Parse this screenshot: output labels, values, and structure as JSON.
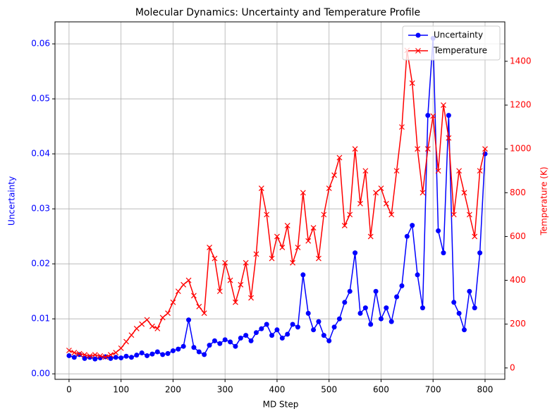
{
  "chart_data": {
    "type": "line",
    "title": "Molecular Dynamics: Uncertainty and Temperature Profile",
    "xlabel": "MD Step",
    "ylabel": "Uncertainty",
    "y2label": "Temperature (K)",
    "x": [
      0,
      10,
      20,
      30,
      40,
      50,
      60,
      70,
      80,
      90,
      100,
      110,
      120,
      130,
      140,
      150,
      160,
      170,
      180,
      190,
      200,
      210,
      220,
      230,
      240,
      250,
      260,
      270,
      280,
      290,
      300,
      310,
      320,
      330,
      340,
      350,
      360,
      370,
      380,
      390,
      400,
      410,
      420,
      430,
      440,
      450,
      460,
      470,
      480,
      490,
      500,
      510,
      520,
      530,
      540,
      550,
      560,
      570,
      580,
      590,
      600,
      610,
      620,
      630,
      640,
      650,
      660,
      670,
      680,
      690,
      700,
      710,
      720,
      730,
      740,
      750,
      760,
      770,
      780,
      790,
      800
    ],
    "series": [
      {
        "name": "Uncertainty",
        "color": "#0000ff",
        "marker": "o",
        "axis": "y",
        "values": [
          0.0033,
          0.003,
          0.0035,
          0.0028,
          0.003,
          0.0027,
          0.0029,
          0.0031,
          0.0028,
          0.003,
          0.0029,
          0.0032,
          0.003,
          0.0034,
          0.0038,
          0.0033,
          0.0036,
          0.004,
          0.0035,
          0.0037,
          0.0042,
          0.0045,
          0.005,
          0.0098,
          0.0048,
          0.004,
          0.0035,
          0.0052,
          0.006,
          0.0055,
          0.0062,
          0.0058,
          0.005,
          0.0065,
          0.007,
          0.006,
          0.0075,
          0.0082,
          0.009,
          0.007,
          0.008,
          0.0065,
          0.0072,
          0.009,
          0.0085,
          0.018,
          0.011,
          0.008,
          0.0095,
          0.007,
          0.006,
          0.0085,
          0.01,
          0.013,
          0.015,
          0.022,
          0.011,
          0.012,
          0.009,
          0.015,
          0.01,
          0.012,
          0.0095,
          0.014,
          0.016,
          0.025,
          0.027,
          0.018,
          0.012,
          0.047,
          0.061,
          0.026,
          0.022,
          0.047,
          0.013,
          0.011,
          0.008,
          0.015,
          0.012,
          0.022,
          0.04
        ]
      },
      {
        "name": "Temperature",
        "color": "#ff0000",
        "marker": "x",
        "axis": "y2",
        "values": [
          80,
          70,
          65,
          60,
          55,
          60,
          55,
          50,
          60,
          70,
          90,
          120,
          150,
          180,
          200,
          220,
          190,
          180,
          230,
          250,
          300,
          350,
          380,
          400,
          330,
          280,
          250,
          550,
          500,
          350,
          480,
          400,
          300,
          380,
          480,
          320,
          520,
          820,
          700,
          500,
          600,
          550,
          650,
          480,
          550,
          800,
          580,
          640,
          500,
          700,
          820,
          880,
          960,
          650,
          700,
          1000,
          750,
          900,
          600,
          800,
          820,
          750,
          700,
          900,
          1100,
          1450,
          1300,
          1000,
          800,
          1000,
          1150,
          900,
          1200,
          1050,
          700,
          900,
          800,
          700,
          600,
          900,
          1000
        ]
      }
    ],
    "xlim": [
      -27,
      838
    ],
    "xticks": [
      0,
      100,
      200,
      300,
      400,
      500,
      600,
      700,
      800
    ],
    "ylim": [
      -0.001,
      0.064
    ],
    "yticks": [
      {
        "value": 0,
        "label": "0.00"
      },
      {
        "value": 0.01,
        "label": "0.01"
      },
      {
        "value": 0.02,
        "label": "0.02"
      },
      {
        "value": 0.03,
        "label": "0.03"
      },
      {
        "value": 0.04,
        "label": "0.04"
      },
      {
        "value": 0.05,
        "label": "0.05"
      },
      {
        "value": 0.06,
        "label": "0.06"
      }
    ],
    "y2lim": [
      -52,
      1580
    ],
    "y2ticks": [
      0,
      200,
      400,
      600,
      800,
      1000,
      1200,
      1400
    ],
    "grid": true,
    "legend": "upper right",
    "ytick_color": "#0000ff",
    "y2tick_color": "#ff0000"
  }
}
